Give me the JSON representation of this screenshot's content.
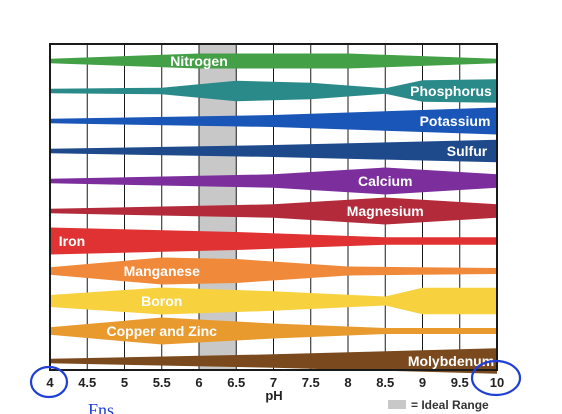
{
  "chart_data": {
    "type": "area",
    "xlabel": "pH",
    "x_ticks": [
      "4",
      "4.5",
      "5",
      "5.5",
      "6",
      "6.5",
      "7",
      "7.5",
      "8",
      "8.5",
      "9",
      "9.5",
      "10"
    ],
    "xlim": [
      4,
      10
    ],
    "ideal_range": [
      6,
      6.5
    ],
    "legend": {
      "label": "= Ideal Range",
      "color": "#c8c8c8",
      "placement": "bottom-right"
    },
    "series": [
      {
        "name": "Nitrogen",
        "color": "#43a047",
        "x": [
          4,
          6,
          8,
          10
        ],
        "availability": [
          0.15,
          0.5,
          0.5,
          0.15
        ]
      },
      {
        "name": "Phosphorus",
        "color": "#2a8a8a",
        "x": [
          4,
          5.5,
          6.5,
          7.5,
          8.5,
          9,
          10
        ],
        "availability": [
          0.15,
          0.22,
          0.68,
          0.55,
          0.18,
          0.72,
          0.78
        ]
      },
      {
        "name": "Potassium",
        "color": "#1a56b8",
        "x": [
          4,
          7,
          10
        ],
        "availability": [
          0.15,
          0.4,
          0.9
        ]
      },
      {
        "name": "Sulfur",
        "color": "#1e4a8c",
        "x": [
          4,
          7,
          10
        ],
        "availability": [
          0.15,
          0.4,
          0.75
        ]
      },
      {
        "name": "Calcium",
        "color": "#7b2e9c",
        "x": [
          4,
          7,
          8.5,
          10
        ],
        "availability": [
          0.15,
          0.45,
          0.9,
          0.45
        ]
      },
      {
        "name": "Magnesium",
        "color": "#b32a3a",
        "x": [
          4,
          7,
          8.5,
          10
        ],
        "availability": [
          0.15,
          0.45,
          0.9,
          0.45
        ]
      },
      {
        "name": "Iron",
        "color": "#e03232",
        "x": [
          4,
          6.5,
          8.5,
          10
        ],
        "availability": [
          0.9,
          0.6,
          0.25,
          0.25
        ]
      },
      {
        "name": "Manganese",
        "color": "#f08a3a",
        "x": [
          4,
          5.5,
          6.5,
          8,
          10
        ],
        "availability": [
          0.25,
          0.9,
          0.8,
          0.3,
          0.2
        ]
      },
      {
        "name": "Boron",
        "color": "#f7d23e",
        "x": [
          4,
          5.5,
          7,
          8.5,
          9,
          10
        ],
        "availability": [
          0.4,
          0.9,
          0.65,
          0.3,
          0.88,
          0.88
        ]
      },
      {
        "name": "Copper and Zinc",
        "color": "#e89a2e",
        "x": [
          4,
          5.5,
          7,
          8.5,
          10
        ],
        "availability": [
          0.25,
          0.9,
          0.5,
          0.2,
          0.2
        ]
      },
      {
        "name": "Molybdenum",
        "color": "#7a4a1e",
        "x": [
          4,
          7,
          10
        ],
        "availability": [
          0.15,
          0.45,
          0.85
        ]
      }
    ]
  },
  "annotations": {
    "circled_ticks": [
      "4",
      "10"
    ],
    "handwritten_note": "Fns"
  }
}
